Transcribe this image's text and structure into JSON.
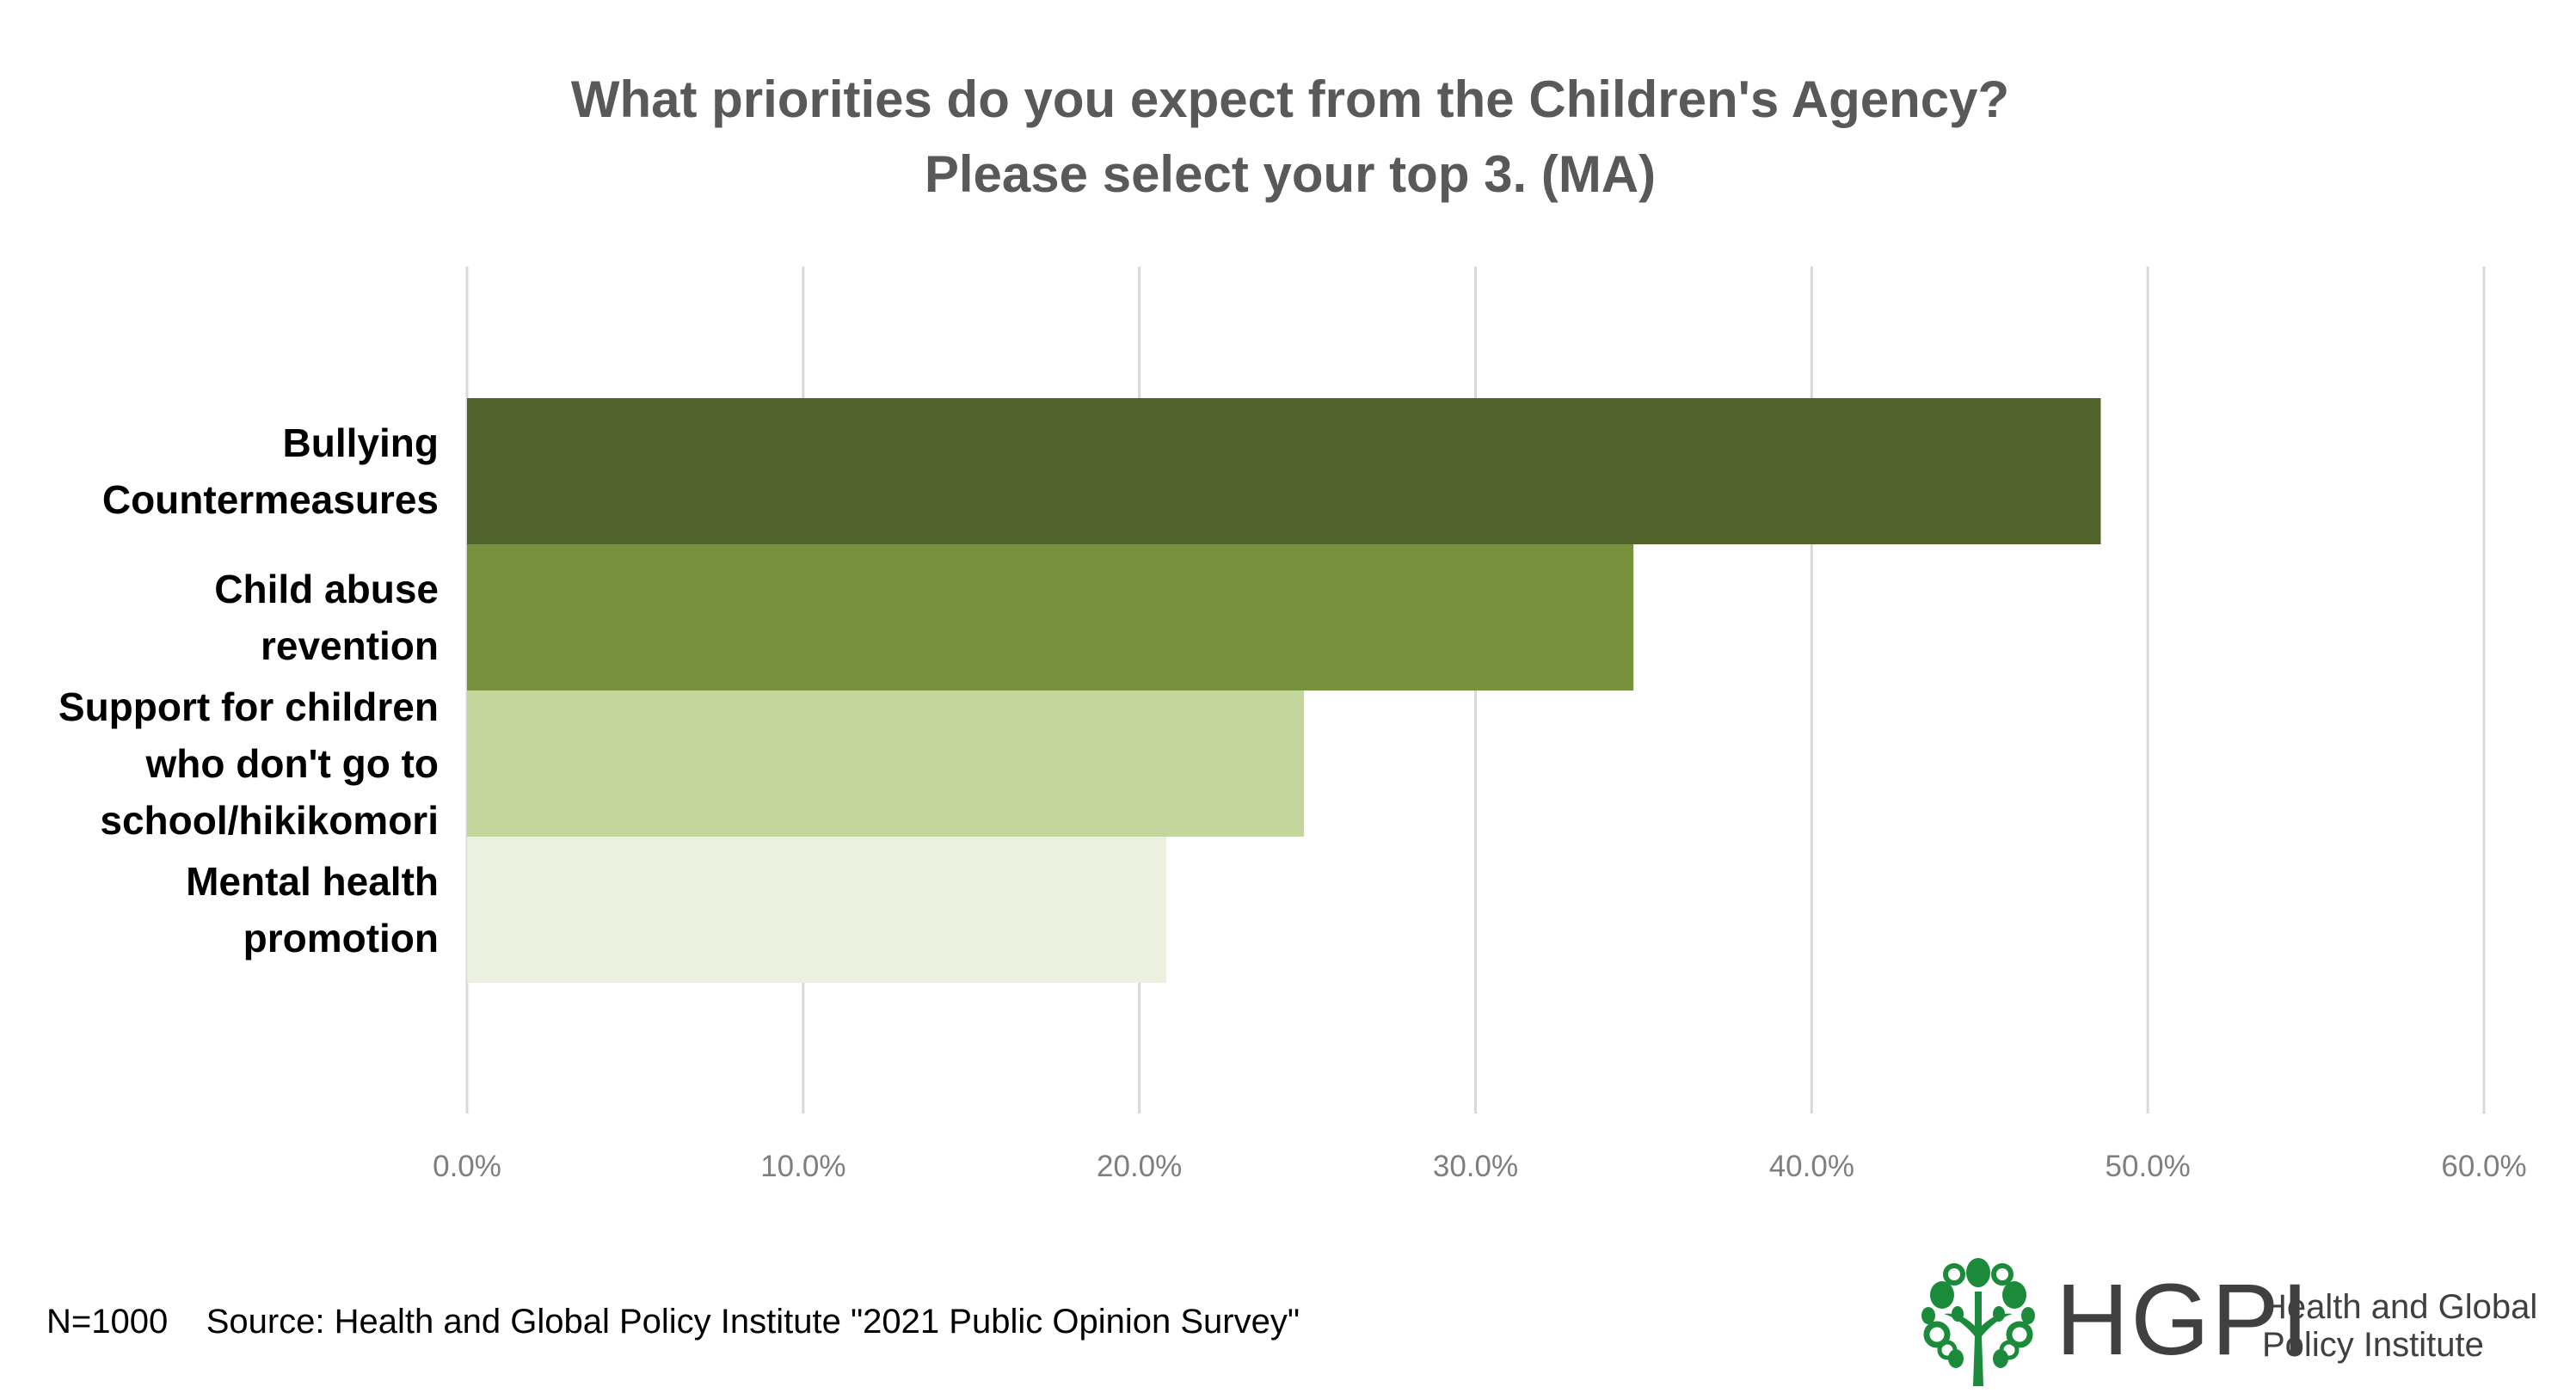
{
  "chart_data": {
    "type": "bar",
    "orientation": "horizontal",
    "title": [
      "What priorities do you expect from the Children's Agency?",
      "Please select your top 3. (MA)"
    ],
    "categories": [
      [
        "Bullying",
        "Countermeasures"
      ],
      [
        "Child abuse",
        "revention"
      ],
      [
        "Support for children",
        "who don't go to",
        "school/hikikomori"
      ],
      [
        "Mental health",
        "promotion"
      ]
    ],
    "values": [
      48.6,
      34.7,
      24.9,
      20.8
    ],
    "value_unit": "%",
    "colors": [
      "#50632a",
      "#77923c",
      "#c3d69b",
      "#ebf1de"
    ],
    "xlim": [
      0,
      60
    ],
    "xticks": [
      0,
      10,
      20,
      30,
      40,
      50,
      60
    ],
    "xtick_labels": [
      "0.0%",
      "10.0%",
      "20.0%",
      "30.0%",
      "40.0%",
      "50.0%",
      "60.0%"
    ],
    "grid": true,
    "xlabel": "",
    "ylabel": ""
  },
  "footer": {
    "sample_size": "N=1000",
    "source": "Source: Health and Global Policy Institute \"2021 Public Opinion Survey\""
  },
  "logo": {
    "abbr": "HGPI",
    "name_line1": "Health and Global",
    "name_line2": "Policy Institute",
    "color": "#1b8b3b",
    "icon": "tree-icon"
  }
}
